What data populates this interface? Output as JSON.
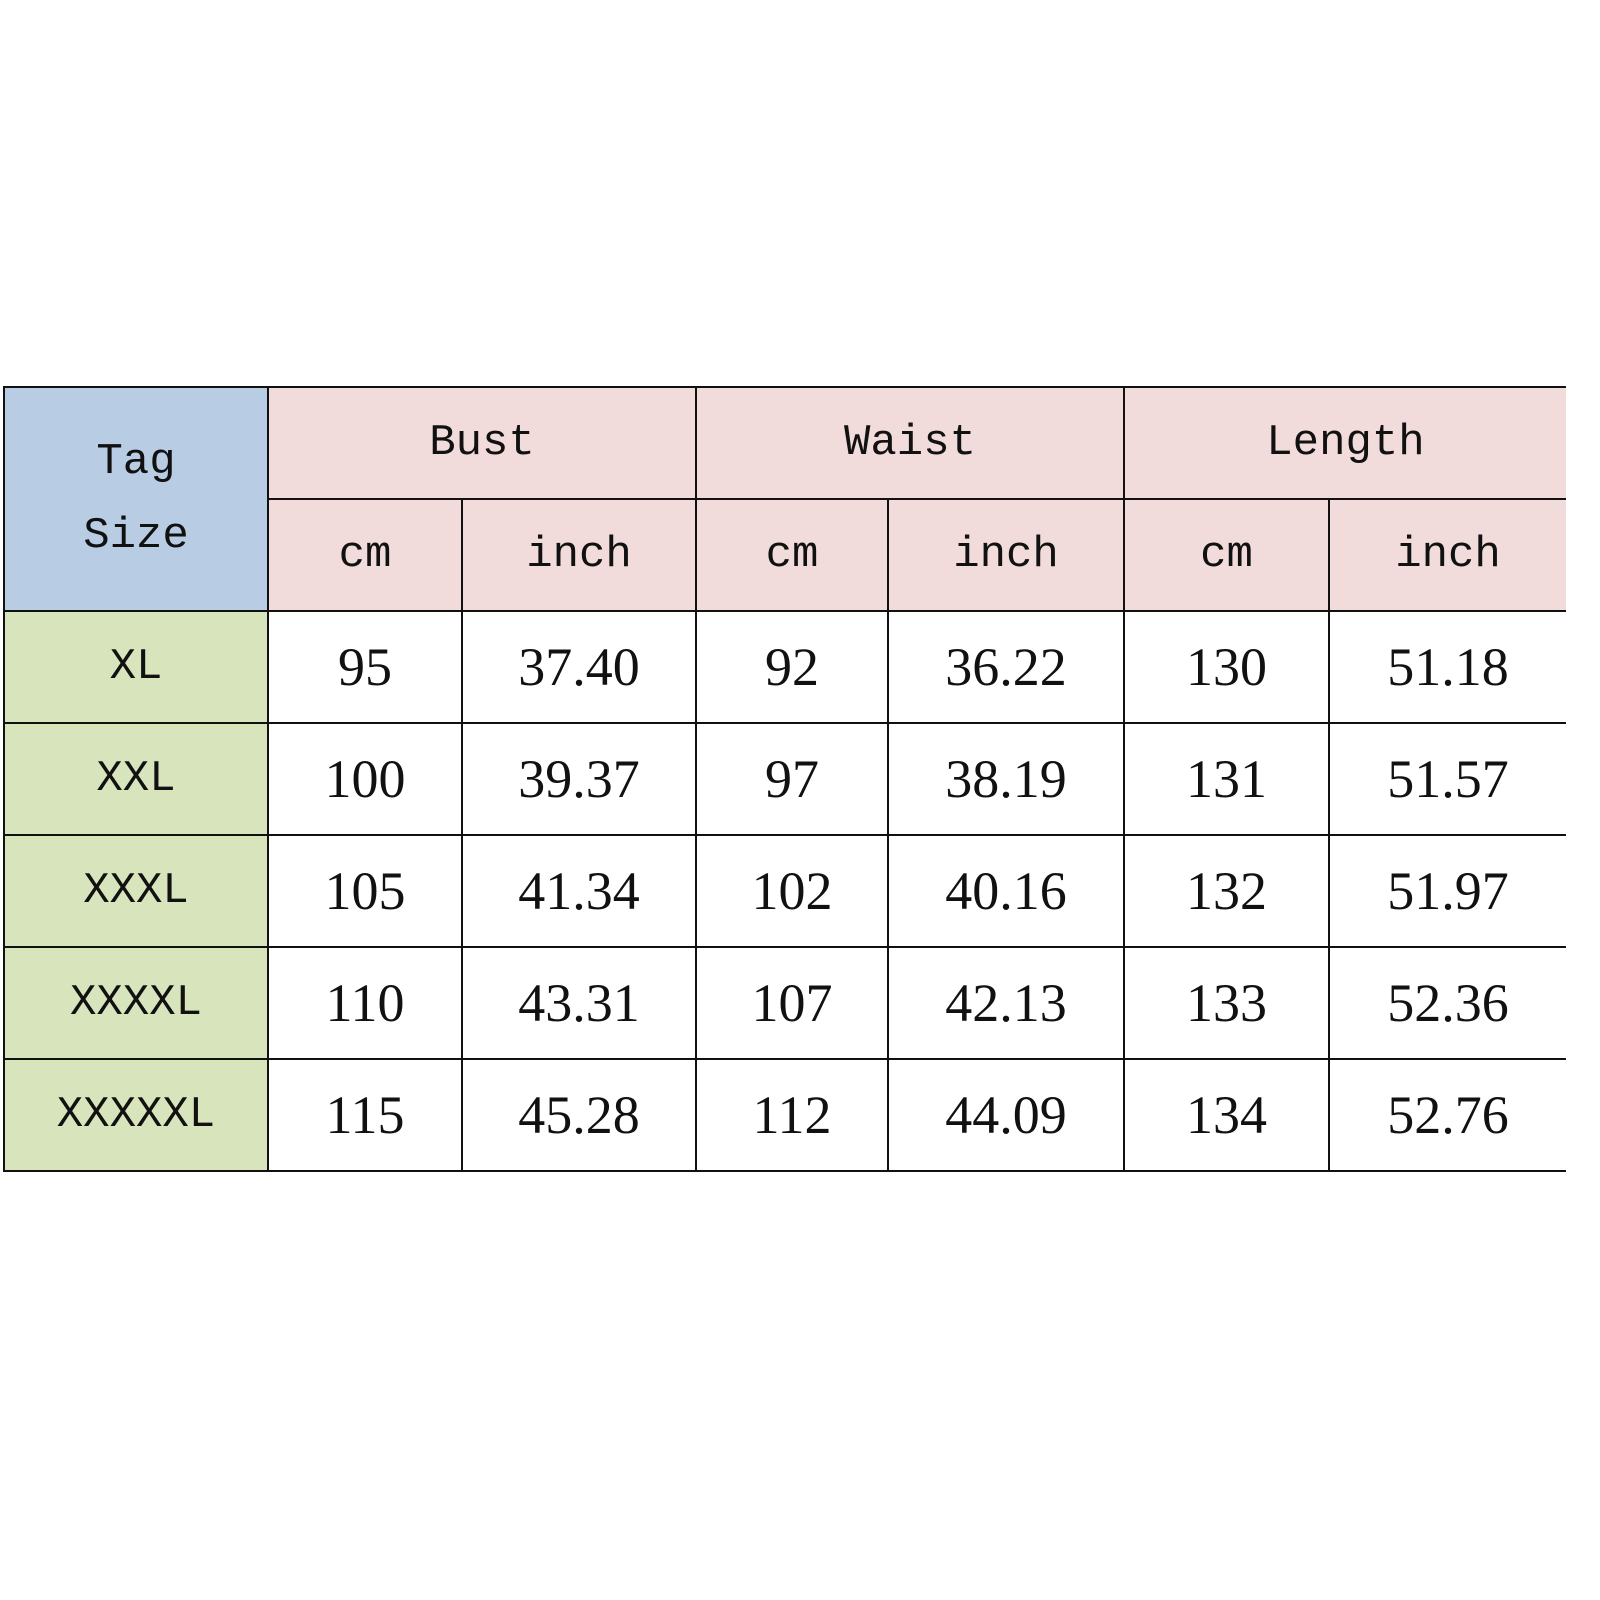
{
  "header": {
    "tag_size": [
      "Tag",
      "Size"
    ],
    "groups": [
      "Bust",
      "Waist",
      "Length"
    ],
    "units": [
      "cm",
      "inch",
      "cm",
      "inch",
      "cm",
      "inch"
    ]
  },
  "rows": [
    {
      "size": "XL",
      "values": [
        "95",
        "37.40",
        "92",
        "36.22",
        "130",
        "51.18"
      ]
    },
    {
      "size": "XXL",
      "values": [
        "100",
        "39.37",
        "97",
        "38.19",
        "131",
        "51.57"
      ]
    },
    {
      "size": "XXXL",
      "values": [
        "105",
        "41.34",
        "102",
        "40.16",
        "132",
        "51.97"
      ]
    },
    {
      "size": "XXXXL",
      "values": [
        "110",
        "43.31",
        "107",
        "42.13",
        "133",
        "52.36"
      ]
    },
    {
      "size": "XXXXXL",
      "values": [
        "115",
        "45.28",
        "112",
        "44.09",
        "134",
        "52.76"
      ]
    }
  ],
  "colors": {
    "tag_header": "#b8cce4",
    "measure_header": "#f2dcdb",
    "size_column": "#d8e4bc",
    "border": "#111111"
  }
}
